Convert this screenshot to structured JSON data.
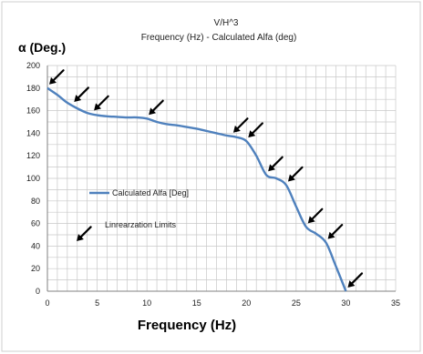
{
  "chart_data": {
    "type": "line",
    "title": "V/H^3",
    "subtitle": "Frequency (Hz) - Calculated Alfa (deg)",
    "xlabel": "Frequency (Hz)",
    "ylabel": "α (Deg.)",
    "xlim": [
      0,
      35
    ],
    "ylim": [
      0,
      200
    ],
    "x_ticks": [
      0,
      5,
      10,
      15,
      20,
      25,
      30,
      35
    ],
    "y_ticks": [
      0,
      20,
      40,
      60,
      80,
      100,
      120,
      140,
      160,
      180,
      200
    ],
    "grid": true,
    "series": [
      {
        "name": "Calculated Alfa   [Deg]",
        "color": "#4f81bd",
        "points": [
          [
            0,
            180
          ],
          [
            1,
            174
          ],
          [
            2,
            167
          ],
          [
            3,
            162
          ],
          [
            4,
            158
          ],
          [
            5,
            156
          ],
          [
            6,
            155
          ],
          [
            7,
            154.5
          ],
          [
            8,
            154
          ],
          [
            9,
            154
          ],
          [
            10,
            153
          ],
          [
            11,
            150
          ],
          [
            12,
            148
          ],
          [
            13,
            147
          ],
          [
            14,
            145.5
          ],
          [
            15,
            144
          ],
          [
            16,
            142
          ],
          [
            17,
            140
          ],
          [
            18,
            138
          ],
          [
            19,
            136.5
          ],
          [
            20,
            133
          ],
          [
            21,
            120
          ],
          [
            22,
            103
          ],
          [
            23,
            100
          ],
          [
            24,
            94
          ],
          [
            25,
            75
          ],
          [
            26,
            57
          ],
          [
            27,
            51
          ],
          [
            28,
            43
          ],
          [
            29,
            22
          ],
          [
            30,
            0
          ]
        ]
      }
    ],
    "legend_entry": {
      "label": "Linrearzation Limits",
      "symbol": "arrow-icon",
      "color": "#000000"
    },
    "linearization_limits_x": [
      0,
      2.5,
      4.5,
      10,
      18.5,
      20,
      22,
      24,
      26,
      28,
      30
    ]
  }
}
